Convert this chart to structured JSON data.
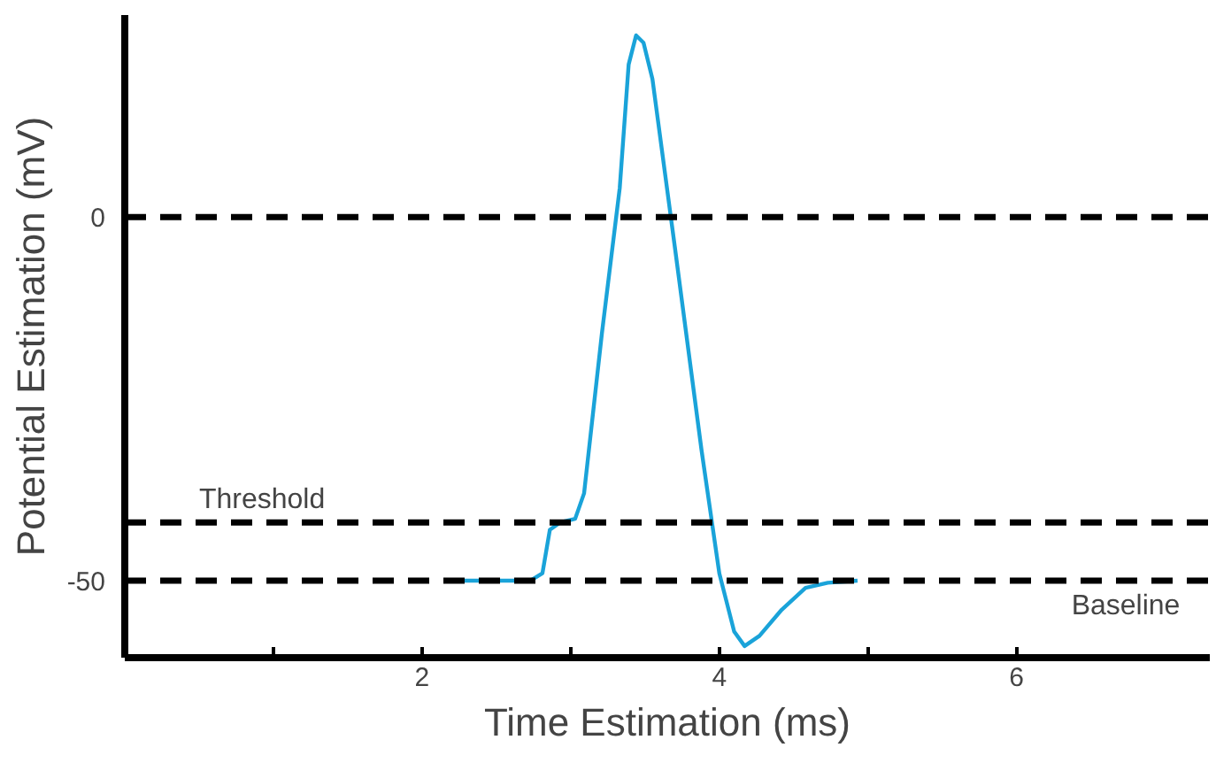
{
  "chart_data": {
    "type": "line",
    "xlabel": "Time Estimation (ms)",
    "ylabel": "Potential Estimation (mV)",
    "x": [
      2.16,
      2.73,
      2.81,
      2.86,
      2.93,
      3.03,
      3.09,
      3.21,
      3.33,
      3.39,
      3.44,
      3.49,
      3.55,
      3.7,
      3.88,
      4.0,
      4.1,
      4.17,
      4.27,
      4.42,
      4.58,
      4.73,
      4.93
    ],
    "series": [
      {
        "color": "#1aa3d9",
        "values": [
          -50,
          -50,
          -49,
          -43,
          -42,
          -41.5,
          -38,
          -16,
          4,
          21,
          25,
          24,
          19,
          -4,
          -32,
          -49,
          -57,
          -59,
          -57.6,
          -54,
          -51,
          -50.3,
          -50
        ]
      }
    ],
    "xlim": [
      0,
      7.3
    ],
    "ylim": [
      -60.6,
      27.8
    ],
    "xticks": [
      {
        "value": 1,
        "label": null
      },
      2,
      {
        "value": 3,
        "label": null
      },
      4,
      {
        "value": 5,
        "label": null
      },
      6
    ],
    "yticks": [
      0,
      -50
    ],
    "ref_lines": [
      {
        "axis": "y",
        "value": 0,
        "label": null,
        "color": "#000000",
        "line_style": "dashed"
      },
      {
        "axis": "y",
        "value": -42,
        "label": "Threshold",
        "color": "#000000",
        "line_style": "dashed"
      },
      {
        "axis": "y",
        "value": -50,
        "label": "Baseline",
        "color": "#000000",
        "line_style": "dashed"
      }
    ],
    "grid": false,
    "marker": "none",
    "line_style": "solid"
  }
}
